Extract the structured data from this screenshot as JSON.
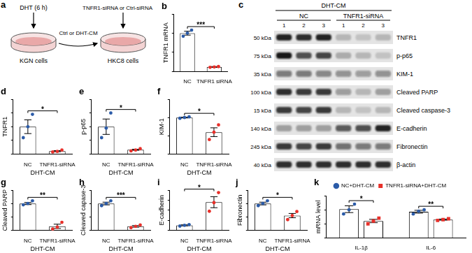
{
  "diagram": {
    "label": "a",
    "steps": [
      "DHT (6 h)",
      "Ctrl or DHT-CM",
      "TNFR1-siRNA or Ctrl-siRNA"
    ],
    "cells": [
      "KGN cells",
      "HKC8 cells"
    ]
  },
  "blot": {
    "label": "c",
    "header": "DHT-CM",
    "groups": [
      "NC",
      "TNFR1-siRNA"
    ],
    "lanes": [
      "1",
      "2",
      "3",
      "1",
      "2",
      "3"
    ],
    "rows": [
      {
        "name": "TNFR1",
        "kda": "50 kDa",
        "intensity": [
          0.9,
          0.85,
          0.9,
          0.2,
          0.15,
          0.2
        ]
      },
      {
        "name": "p-p65",
        "kda": "75 kDa",
        "intensity": [
          0.95,
          0.7,
          0.75,
          0.25,
          0.2,
          0.15
        ]
      },
      {
        "name": "KIM-1",
        "kda": "35 kDa",
        "intensity": [
          0.5,
          0.5,
          0.45,
          0.4,
          0.35,
          0.4
        ]
      },
      {
        "name": "Cleaved PARP",
        "kda": "100 kDa",
        "intensity": [
          0.85,
          0.8,
          0.8,
          0.35,
          0.2,
          0.3
        ]
      },
      {
        "name": "Cleaved caspase-3",
        "kda": "15 kDa",
        "intensity": [
          0.8,
          0.75,
          0.8,
          0.2,
          0.15,
          0.2
        ]
      },
      {
        "name": "E-cadherin",
        "kda": "140 kDa",
        "intensity": [
          0.3,
          0.3,
          0.3,
          0.65,
          0.7,
          0.9
        ]
      },
      {
        "name": "Fibronectin",
        "kda": "245 kDa",
        "intensity": [
          0.8,
          0.75,
          0.8,
          0.55,
          0.5,
          0.5
        ]
      },
      {
        "name": "β-actin",
        "kda": "40 kDa",
        "intensity": [
          0.85,
          0.85,
          0.85,
          0.85,
          0.85,
          0.85
        ]
      }
    ]
  },
  "chart_data": [
    {
      "label": "b",
      "type": "bar",
      "y_label": "TNFR1 mRNA",
      "categories": [
        "NC",
        "TNFR1 siRNA"
      ],
      "ylim": [
        0,
        1.5
      ],
      "yticks": [
        0,
        0.5,
        1,
        1.5
      ],
      "tick_labels": "x",
      "grid": false,
      "marker": "circle",
      "significance": "***",
      "series": [
        {
          "colors": [
            "#2b5ba8",
            "#e8302a"
          ],
          "values": [
            1.0,
            0.12
          ],
          "errors": [
            0.05,
            0.01
          ],
          "points": [
            [
              0.92,
              1.0,
              1.08
            ],
            [
              0.11,
              0.12,
              0.13
            ]
          ]
        }
      ]
    },
    {
      "label": "d",
      "type": "bar",
      "y_label": "TNFR1",
      "x_label": "DHT-CM",
      "categories": [
        "NC",
        "TNFR1-siRNA"
      ],
      "ylim": [
        0,
        2
      ],
      "yticks": [
        0,
        0.5,
        1,
        1.5,
        2
      ],
      "tick_labels": "x",
      "grid": false,
      "marker": "circle",
      "significance": "*",
      "series": [
        {
          "colors": [
            "#2b5ba8",
            "#e8302a"
          ],
          "values": [
            1.0,
            0.11
          ],
          "errors": [
            0.25,
            0.02
          ],
          "points": [
            [
              0.6,
              1.0,
              1.45
            ],
            [
              0.08,
              0.1,
              0.15
            ]
          ]
        }
      ]
    },
    {
      "label": "e",
      "type": "bar",
      "y_label": "p-p65",
      "x_label": "DHT-CM",
      "categories": [
        "NC",
        "TNFR1-siRNA"
      ],
      "ylim": [
        0,
        2
      ],
      "yticks": [
        0,
        0.5,
        1,
        1.5,
        2
      ],
      "tick_labels": "x",
      "grid": false,
      "marker": "circle",
      "significance": "*",
      "series": [
        {
          "colors": [
            "#2b5ba8",
            "#e8302a"
          ],
          "values": [
            1.0,
            0.16
          ],
          "errors": [
            0.28,
            0.02
          ],
          "points": [
            [
              0.6,
              0.95,
              1.5
            ],
            [
              0.12,
              0.15,
              0.2
            ]
          ]
        }
      ]
    },
    {
      "label": "f",
      "type": "bar",
      "y_label": "KIM-1",
      "x_label": "DHT-CM",
      "categories": [
        "NC",
        "TNFR1-siRNA"
      ],
      "ylim": [
        0,
        1.5
      ],
      "yticks": [
        0,
        0.5,
        1,
        1.5
      ],
      "tick_labels": "x",
      "grid": false,
      "marker": "circle",
      "significance": "*",
      "series": [
        {
          "colors": [
            "#2b5ba8",
            "#e8302a"
          ],
          "values": [
            1.0,
            0.6
          ],
          "errors": [
            0.01,
            0.12
          ],
          "points": [
            [
              0.98,
              1.0,
              1.02
            ],
            [
              0.4,
              0.6,
              0.8
            ]
          ]
        }
      ]
    },
    {
      "label": "g",
      "type": "bar",
      "y_label": "Cleaved PARP",
      "x_label": "DHT-CM",
      "categories": [
        "NC",
        "TNFR1-siRNA"
      ],
      "ylim": [
        0,
        1.5
      ],
      "yticks": [
        0,
        0.5,
        1,
        1.5
      ],
      "tick_labels": "x",
      "grid": false,
      "marker": "circle",
      "significance": "**",
      "series": [
        {
          "colors": [
            "#2b5ba8",
            "#e8302a"
          ],
          "values": [
            1.0,
            0.15
          ],
          "errors": [
            0.04,
            0.08
          ],
          "points": [
            [
              0.95,
              1.0,
              1.1
            ],
            [
              0.05,
              0.12,
              0.3
            ]
          ]
        }
      ]
    },
    {
      "label": "h",
      "type": "bar",
      "y_label": "Cleaved capase-3",
      "x_label": "DHT-CM",
      "categories": [
        "NC",
        "TNFR1-siRNA"
      ],
      "ylim": [
        0,
        1.5
      ],
      "yticks": [
        0,
        0.5,
        1,
        1.5
      ],
      "tick_labels": "x",
      "grid": false,
      "marker": "circle",
      "significance": "***",
      "series": [
        {
          "colors": [
            "#2b5ba8",
            "#e8302a"
          ],
          "values": [
            1.0,
            0.15
          ],
          "errors": [
            0.05,
            0.03
          ],
          "points": [
            [
              0.92,
              1.0,
              1.1
            ],
            [
              0.1,
              0.15,
              0.2
            ]
          ]
        }
      ]
    },
    {
      "label": "i",
      "type": "bar",
      "y_label": "E-cadherin",
      "x_label": "DHT-CM",
      "categories": [
        "NC",
        "TNFR1-siRNA"
      ],
      "ylim": [
        0,
        8
      ],
      "yticks": [
        0,
        2,
        4,
        6,
        8
      ],
      "tick_labels": "x",
      "grid": false,
      "marker": "circle",
      "significance": "*",
      "series": [
        {
          "colors": [
            "#2b5ba8",
            "#e8302a"
          ],
          "values": [
            1.0,
            5.6
          ],
          "errors": [
            0.1,
            1.1
          ],
          "points": [
            [
              0.85,
              1.0,
              1.15
            ],
            [
              3.8,
              5.5,
              7.5
            ]
          ]
        }
      ]
    },
    {
      "label": "j",
      "type": "bar",
      "y_label": "Fibronectin",
      "x_label": "DHT-CM",
      "categories": [
        "NC",
        "TNFR1-siRNA"
      ],
      "ylim": [
        0,
        1.5
      ],
      "yticks": [
        0,
        0.5,
        1,
        1.5
      ],
      "tick_labels": "x",
      "grid": false,
      "marker": "circle",
      "significance": "*",
      "series": [
        {
          "colors": [
            "#2b5ba8",
            "#e8302a"
          ],
          "values": [
            1.0,
            0.55
          ],
          "errors": [
            0.05,
            0.08
          ],
          "points": [
            [
              0.92,
              1.0,
              1.1
            ],
            [
              0.4,
              0.55,
              0.7
            ]
          ]
        }
      ]
    },
    {
      "label": "k",
      "type": "bar",
      "y_label": "mRNA level",
      "categories": [
        "IL-1β",
        "IL-6"
      ],
      "ylim": [
        0,
        1.5
      ],
      "yticks": [
        0,
        0.5,
        1,
        1.5
      ],
      "tick_labels": "x",
      "grid": false,
      "legend": "top",
      "significance": [
        "*",
        "**"
      ],
      "series": [
        {
          "name": "NC+DHT-CM",
          "color": "#2b5ba8",
          "marker": "circle",
          "values": [
            1.02,
            0.93
          ],
          "errors": [
            0.12,
            0.05
          ],
          "points": [
            [
              0.85,
              1.0,
              1.2
            ],
            [
              0.85,
              0.95,
              1.0
            ]
          ]
        },
        {
          "name": "TNFR1-siRNA+DHT-CM",
          "color": "#e8302a",
          "marker": "square",
          "values": [
            0.6,
            0.65
          ],
          "errors": [
            0.06,
            0.02
          ],
          "points": [
            [
              0.5,
              0.6,
              0.7
            ],
            [
              0.62,
              0.65,
              0.68
            ]
          ]
        }
      ]
    }
  ]
}
